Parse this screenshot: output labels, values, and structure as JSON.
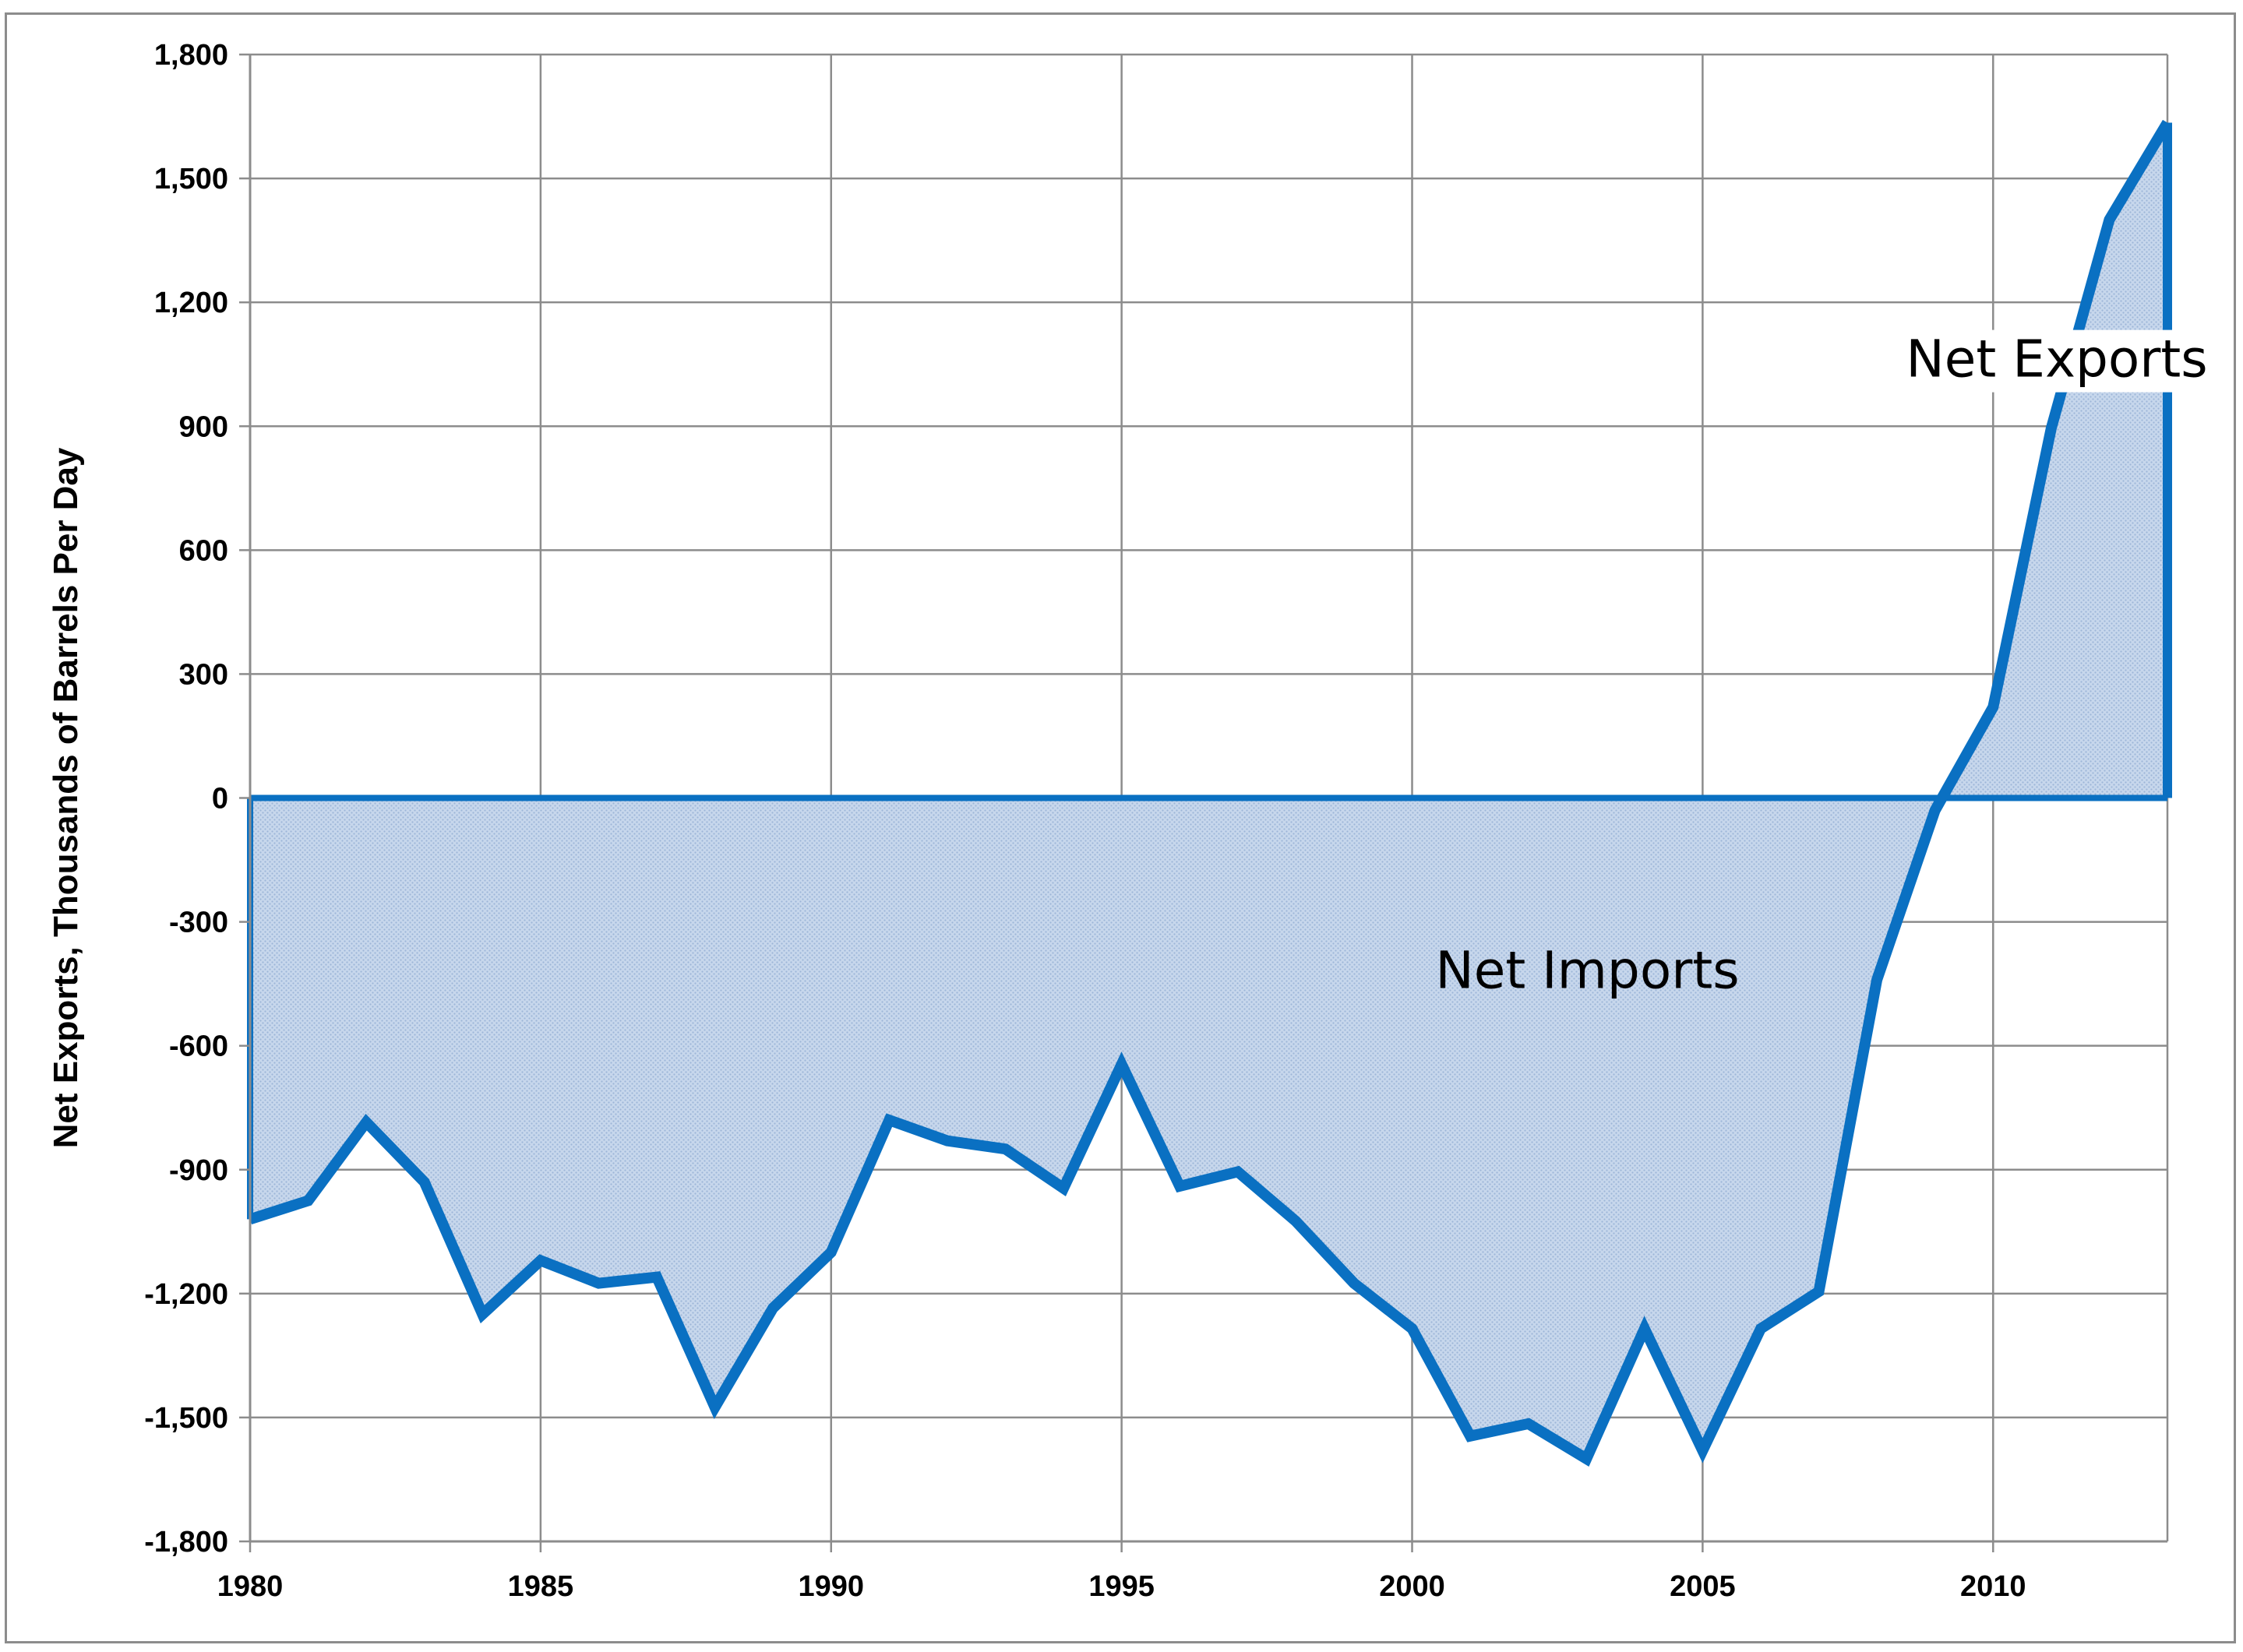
{
  "chart_data": {
    "type": "area",
    "title": "",
    "xlabel": "",
    "ylabel": "Net Exports, Thousands of Barrels Per Day",
    "xlim": [
      1980,
      2013
    ],
    "ylim": [
      -1800,
      1800
    ],
    "x_ticks": [
      "1980",
      "1985",
      "1990",
      "1995",
      "2000",
      "2005",
      "2010"
    ],
    "y_ticks": [
      "1,800",
      "1,500",
      "1,200",
      "900",
      "600",
      "300",
      "0",
      "-300",
      "-600",
      "-900",
      "-1,200",
      "-1,500",
      "-1,800"
    ],
    "grid": true,
    "legend": "none",
    "annotations": [
      {
        "text": "Net Exports",
        "x": 2008.5,
        "y": 1020
      },
      {
        "text": "Net Imports",
        "x": 2000.4,
        "y": -460
      }
    ],
    "series": [
      {
        "x": [
          1980,
          1981,
          1982,
          1983,
          1984,
          1985,
          1986,
          1987,
          1988,
          1989,
          1990,
          1991,
          1992,
          1993,
          1994,
          1995,
          1996,
          1997,
          1998,
          1999,
          2000,
          2001,
          2002,
          2003,
          2004,
          2005,
          2006,
          2007,
          2008,
          2009,
          2010,
          2011,
          2012,
          2013
        ],
        "values": [
          -1020,
          -975,
          -785,
          -930,
          -1250,
          -1120,
          -1175,
          -1160,
          -1475,
          -1235,
          -1100,
          -780,
          -830,
          -850,
          -945,
          -645,
          -940,
          -905,
          -1025,
          -1175,
          -1285,
          -1545,
          -1515,
          -1600,
          -1285,
          -1580,
          -1285,
          -1195,
          -440,
          -30,
          220,
          895,
          1400,
          1635
        ]
      }
    ],
    "colors": {
      "line": "#0a70c2",
      "fill": "#b8cde6",
      "grid": "#8c8c8c"
    }
  }
}
